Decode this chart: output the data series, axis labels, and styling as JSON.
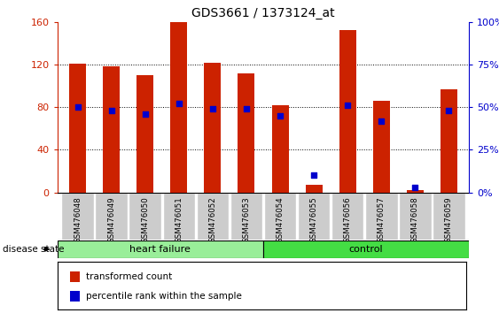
{
  "title": "GDS3661 / 1373124_at",
  "samples": [
    "GSM476048",
    "GSM476049",
    "GSM476050",
    "GSM476051",
    "GSM476052",
    "GSM476053",
    "GSM476054",
    "GSM476055",
    "GSM476056",
    "GSM476057",
    "GSM476058",
    "GSM476059"
  ],
  "transformed_count": [
    121,
    118,
    110,
    160,
    122,
    112,
    82,
    7,
    152,
    86,
    2,
    97
  ],
  "percentile_rank": [
    50,
    48,
    46,
    52,
    49,
    49,
    45,
    10,
    51,
    42,
    3,
    48
  ],
  "heart_failure_count": 6,
  "control_count": 6,
  "ylim_left": [
    0,
    160
  ],
  "ylim_right": [
    0,
    100
  ],
  "yticks_left": [
    0,
    40,
    80,
    120,
    160
  ],
  "yticks_right": [
    0,
    25,
    50,
    75,
    100
  ],
  "bar_color": "#cc2200",
  "dot_color": "#0000cc",
  "heart_failure_color": "#99ee99",
  "control_color": "#44dd44",
  "label_bg_color": "#cccccc",
  "legend_bar_label": "transformed count",
  "legend_dot_label": "percentile rank within the sample",
  "disease_state_label": "disease state",
  "heart_failure_label": "heart failure",
  "control_label": "control",
  "bar_width": 0.5
}
